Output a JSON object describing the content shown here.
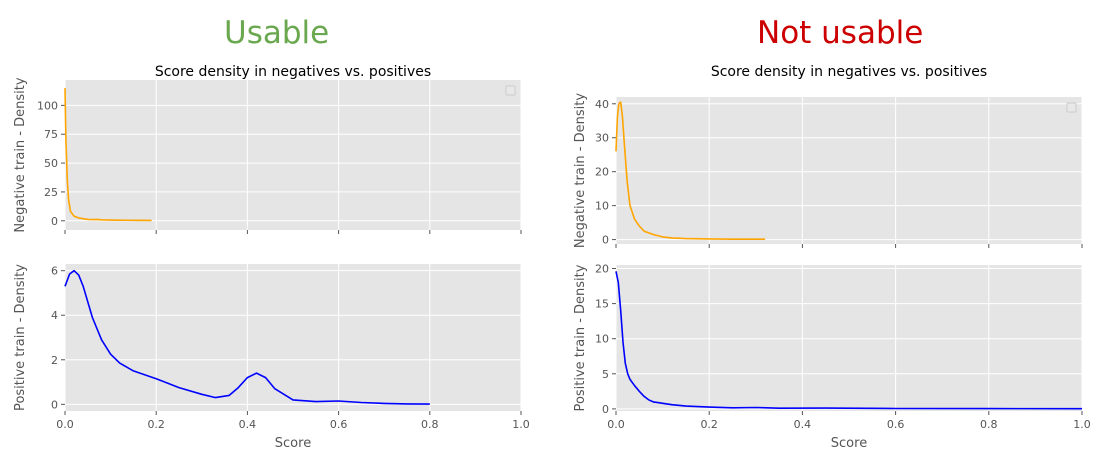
{
  "headlines": {
    "left": "Usable",
    "right": "Not usable"
  },
  "colors": {
    "usable": "#6aa84f",
    "not_usable": "#cc0000",
    "negative_line": "#ffa500",
    "positive_line": "#0000ff",
    "plot_bg": "#e5e5e5",
    "grid": "#ffffff"
  },
  "chart_data": [
    {
      "id": "usable",
      "title": "Score density in negatives vs. positives",
      "xlabel": "Score",
      "xlim": [
        0,
        1.0
      ],
      "xticks": [
        "0.0",
        "0.2",
        "0.4",
        "0.6",
        "0.8",
        "1.0"
      ],
      "legend": "top-right",
      "grid": true,
      "subplots": [
        {
          "name": "negative",
          "type": "line",
          "ylabel": "Negative train - Density",
          "ylim": [
            -8,
            122
          ],
          "yticks": [
            0,
            25,
            50,
            75,
            100
          ],
          "series": [
            {
              "color": "#ffa500",
              "x": [
                0,
                0.002,
                0.005,
                0.008,
                0.012,
                0.02,
                0.03,
                0.04,
                0.05,
                0.06,
                0.07,
                0.08,
                0.1,
                0.12,
                0.15,
                0.19
              ],
              "y": [
                115,
                70,
                35,
                18,
                8,
                4,
                2.5,
                1.8,
                1.2,
                1,
                1.2,
                0.8,
                0.6,
                0.5,
                0.4,
                0.3
              ]
            }
          ]
        },
        {
          "name": "positive",
          "type": "line",
          "ylabel": "Positive train - Density",
          "ylim": [
            -0.3,
            6.3
          ],
          "yticks": [
            0,
            2,
            4,
            6
          ],
          "series": [
            {
              "color": "#0000ff",
              "x": [
                0,
                0.01,
                0.02,
                0.03,
                0.04,
                0.06,
                0.08,
                0.1,
                0.12,
                0.15,
                0.2,
                0.25,
                0.3,
                0.33,
                0.36,
                0.38,
                0.4,
                0.42,
                0.44,
                0.46,
                0.5,
                0.55,
                0.6,
                0.65,
                0.7,
                0.75,
                0.8
              ],
              "y": [
                5.3,
                5.85,
                6.0,
                5.8,
                5.3,
                3.9,
                2.9,
                2.25,
                1.85,
                1.5,
                1.15,
                0.75,
                0.45,
                0.3,
                0.4,
                0.75,
                1.2,
                1.4,
                1.2,
                0.7,
                0.2,
                0.12,
                0.15,
                0.08,
                0.04,
                0.02,
                0.01
              ]
            }
          ]
        }
      ]
    },
    {
      "id": "not-usable",
      "title": "Score density in negatives vs. positives",
      "xlabel": "Score",
      "xlim": [
        0,
        1.0
      ],
      "xticks": [
        "0.0",
        "0.2",
        "0.4",
        "0.6",
        "0.8",
        "1.0"
      ],
      "legend": "top-right",
      "grid": true,
      "subplots": [
        {
          "name": "negative",
          "type": "line",
          "ylabel": "Negative train - Density",
          "ylim": [
            -1.3,
            42
          ],
          "yticks": [
            0,
            10,
            20,
            30,
            40
          ],
          "series": [
            {
              "color": "#ffa500",
              "x": [
                0,
                0.003,
                0.006,
                0.01,
                0.014,
                0.018,
                0.024,
                0.03,
                0.04,
                0.05,
                0.06,
                0.08,
                0.1,
                0.12,
                0.15,
                0.2,
                0.25,
                0.32
              ],
              "y": [
                26,
                36,
                40,
                40.5,
                36,
                28,
                17,
                10,
                6,
                4,
                2.5,
                1.5,
                0.8,
                0.5,
                0.3,
                0.2,
                0.12,
                0.1
              ]
            }
          ]
        },
        {
          "name": "positive",
          "type": "line",
          "ylabel": "Positive train - Density",
          "ylim": [
            -0.3,
            20.5
          ],
          "yticks": [
            0,
            5,
            10,
            15,
            20
          ],
          "series": [
            {
              "color": "#0000ff",
              "x": [
                0,
                0.005,
                0.01,
                0.015,
                0.02,
                0.025,
                0.03,
                0.04,
                0.05,
                0.06,
                0.07,
                0.08,
                0.09,
                0.1,
                0.12,
                0.15,
                0.2,
                0.25,
                0.3,
                0.35,
                0.45,
                0.6,
                0.8,
                1.0
              ],
              "y": [
                19.6,
                18,
                14,
                9.5,
                6.5,
                5,
                4.2,
                3.3,
                2.5,
                1.8,
                1.3,
                1.0,
                0.9,
                0.8,
                0.6,
                0.4,
                0.25,
                0.15,
                0.2,
                0.1,
                0.12,
                0.05,
                0.04,
                0.03
              ]
            }
          ]
        }
      ]
    }
  ]
}
